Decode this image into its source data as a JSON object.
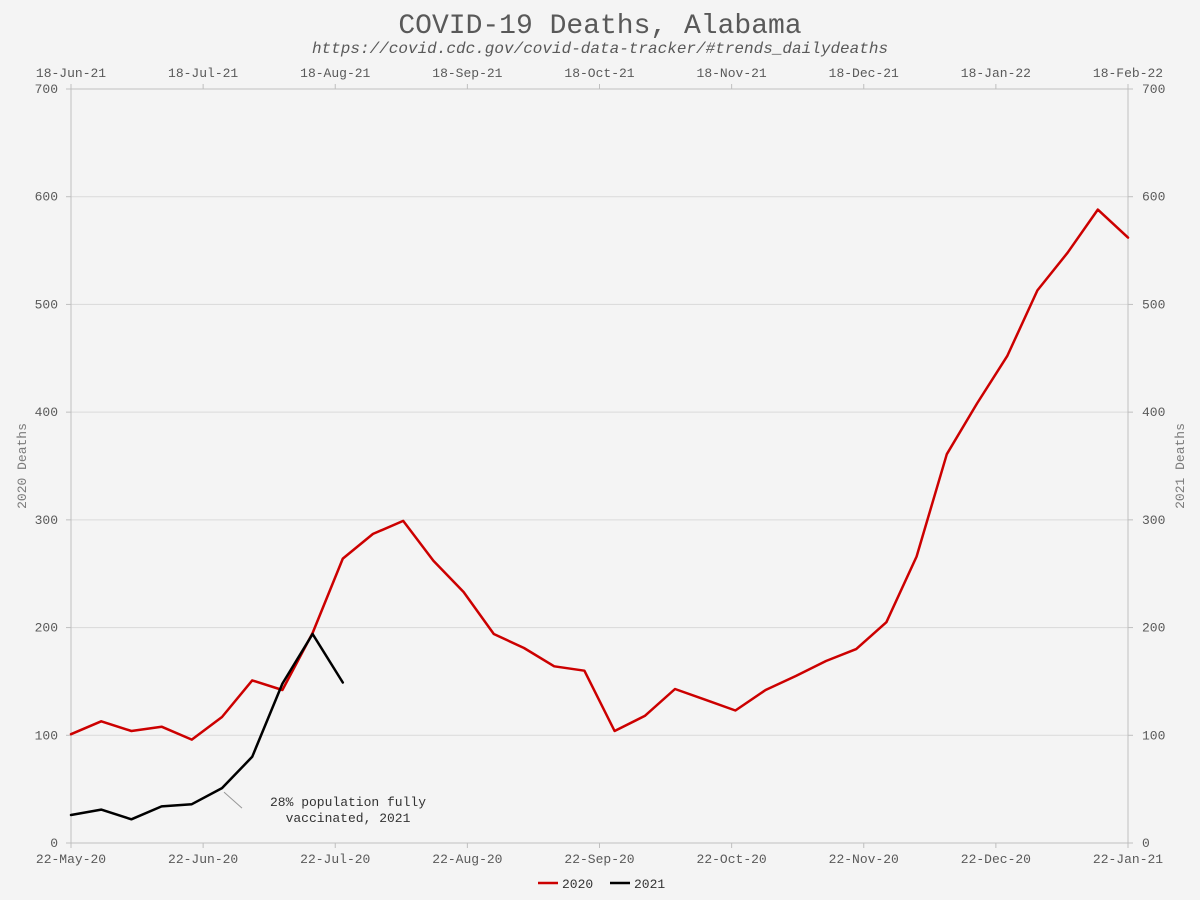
{
  "chart_data": {
    "type": "line",
    "title": "COVID-19 Deaths, Alabama",
    "subtitle": "https://covid.cdc.gov/covid-data-tracker/#trends_dailydeaths",
    "ylabel_left": "2020 Deaths",
    "ylabel_right": "2021 Deaths",
    "ylim": [
      0,
      700
    ],
    "yticks": [
      0,
      100,
      200,
      300,
      400,
      500,
      600,
      700
    ],
    "grid": true,
    "x_bottom_ticks": [
      "22-May-20",
      "22-Jun-20",
      "22-Jul-20",
      "22-Aug-20",
      "22-Sep-20",
      "22-Oct-20",
      "22-Nov-20",
      "22-Dec-20",
      "22-Jan-21"
    ],
    "x_top_ticks": [
      "18-Jun-21",
      "18-Jul-21",
      "18-Aug-21",
      "18-Sep-21",
      "18-Oct-21",
      "18-Nov-21",
      "18-Dec-21",
      "18-Jan-22",
      "18-Feb-22"
    ],
    "x_week_count": 36,
    "legend_position": "bottom-center",
    "series": [
      {
        "name": "2020",
        "color": "#cc0000",
        "values": [
          101,
          113,
          104,
          108,
          96,
          117,
          151,
          142,
          195,
          264,
          287,
          299,
          262,
          233,
          194,
          181,
          164,
          160,
          104,
          118,
          143,
          133,
          123,
          142,
          155,
          169,
          180,
          205,
          266,
          361,
          408,
          452,
          513,
          548,
          588,
          562
        ]
      },
      {
        "name": "2021",
        "color": "#000000",
        "values": [
          26,
          31,
          22,
          34,
          36,
          51,
          80,
          148,
          194,
          149
        ]
      }
    ],
    "annotations": [
      {
        "text_line1": "28% population fully",
        "text_line2": "vaccinated, 2021",
        "series": "2021",
        "point_index": 5
      }
    ]
  }
}
